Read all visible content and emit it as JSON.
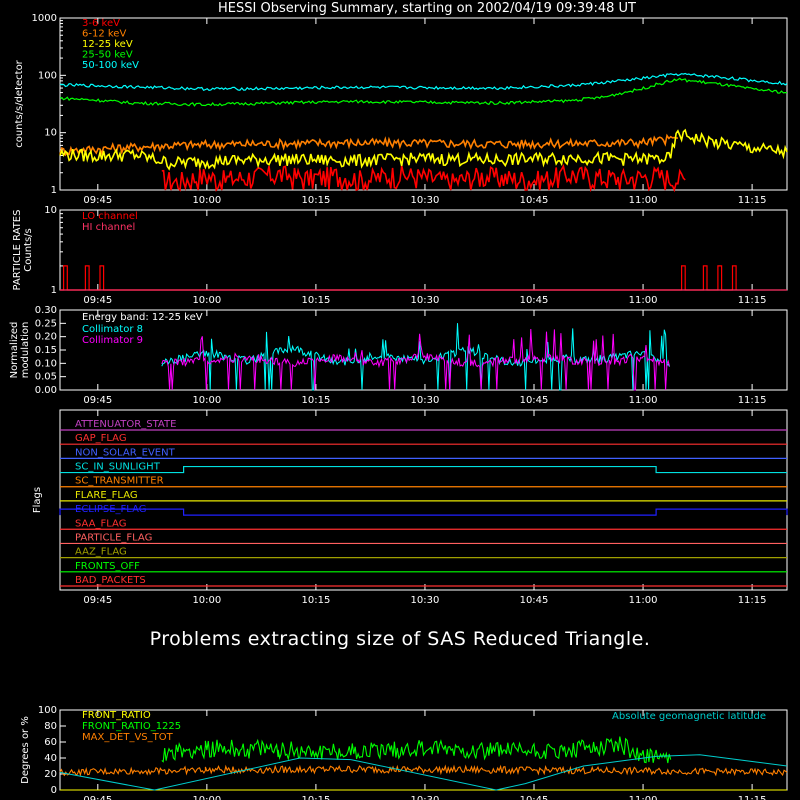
{
  "title": "HESSI Observing Summary, starting on 2002/04/19 09:39:48 UT",
  "message": "Problems extracting size of SAS Reduced Triangle.",
  "time_ticks": [
    "09:45",
    "10:00",
    "10:15",
    "10:30",
    "10:45",
    "11:00",
    "11:15"
  ],
  "chart_data": [
    {
      "id": "lightcurves",
      "type": "line",
      "ylabel": "counts/s/detector",
      "y_scale": "log",
      "ylim": [
        1,
        1000
      ],
      "y_ticks": [
        "1",
        "10",
        "100",
        "1000"
      ],
      "xlim_minutes": [
        0,
        100
      ],
      "series": [
        {
          "name": "3-6 keV",
          "color": "#ff0000",
          "x": [
            14,
            16,
            20,
            22,
            26,
            30,
            34,
            38,
            42,
            46,
            50,
            54,
            58,
            62,
            66,
            70,
            74,
            78,
            82,
            86
          ],
          "y": [
            1.6,
            1.4,
            1.8,
            1.5,
            1.7,
            1.9,
            1.6,
            1.8,
            1.5,
            1.9,
            1.7,
            1.4,
            1.8,
            1.6,
            1.5,
            1.9,
            1.7,
            1.6,
            1.8,
            1.5
          ]
        },
        {
          "name": "6-12 keV",
          "color": "#ff8000",
          "x": [
            0,
            15,
            20,
            30,
            40,
            50,
            60,
            70,
            80,
            85
          ],
          "y": [
            4.8,
            6.0,
            6.2,
            6.5,
            6.7,
            6.6,
            6.4,
            6.5,
            6.8,
            8.0
          ]
        },
        {
          "name": "12-25 keV",
          "color": "#ffff00",
          "x": [
            0,
            5,
            10,
            15,
            20,
            30,
            40,
            50,
            60,
            70,
            80,
            84,
            85,
            87,
            90,
            95,
            100
          ],
          "y": [
            4.3,
            4.0,
            4.2,
            3.0,
            3.2,
            3.5,
            3.3,
            3.6,
            3.4,
            3.7,
            3.5,
            3.6,
            9.5,
            8.5,
            6.8,
            5.5,
            4.6
          ]
        },
        {
          "name": "25-50 keV",
          "color": "#00ff00",
          "x": [
            0,
            5,
            10,
            20,
            30,
            40,
            50,
            60,
            70,
            75,
            80,
            85,
            90,
            95,
            100
          ],
          "y": [
            40,
            37,
            33,
            31,
            33,
            35,
            34,
            33,
            36,
            42,
            58,
            85,
            72,
            58,
            50
          ]
        },
        {
          "name": "50-100 keV",
          "color": "#00ffff",
          "x": [
            0,
            5,
            10,
            20,
            30,
            40,
            50,
            60,
            70,
            75,
            80,
            85,
            90,
            95,
            100
          ],
          "y": [
            68,
            66,
            63,
            58,
            59,
            62,
            61,
            60,
            66,
            75,
            88,
            105,
            95,
            82,
            72
          ]
        }
      ]
    },
    {
      "id": "particles",
      "type": "line",
      "ylabel": "PARTICLE RATES Counts/s",
      "y_scale": "log",
      "ylim": [
        1,
        10
      ],
      "y_ticks": [
        "1",
        "10"
      ],
      "series": [
        {
          "name": "LO channel",
          "color": "#ff0000",
          "x": [
            0,
            0.5,
            1,
            3,
            3.5,
            4,
            5,
            5.5,
            6,
            85,
            85.5,
            86,
            88,
            88.5,
            89,
            90,
            90.5,
            91,
            92,
            92.5,
            93
          ],
          "y": [
            1,
            2,
            1,
            1,
            2,
            1,
            1,
            2,
            1,
            1,
            2,
            1,
            1,
            2,
            1,
            1,
            2,
            1,
            1,
            2,
            1
          ]
        },
        {
          "name": "HI channel",
          "color": "#ff3366",
          "x": [
            0,
            100
          ],
          "y": [
            1,
            1
          ]
        }
      ]
    },
    {
      "id": "modulation",
      "type": "line",
      "ylabel": "Normalized modulation",
      "ylim": [
        0,
        0.3
      ],
      "y_ticks": [
        "0.00",
        "0.05",
        "0.10",
        "0.15",
        "0.20",
        "0.25",
        "0.30"
      ],
      "energy_band_label": "Energy band: 12-25 keV",
      "series": [
        {
          "name": "Collimator 8",
          "color": "#00ffff",
          "x": [
            14,
            20,
            26,
            32,
            38,
            44,
            50,
            56,
            62,
            68,
            74,
            80,
            84
          ],
          "y": [
            0.1,
            0.14,
            0.11,
            0.16,
            0.1,
            0.13,
            0.11,
            0.15,
            0.1,
            0.12,
            0.11,
            0.14,
            0.1
          ]
        },
        {
          "name": "Collimator 9",
          "color": "#ff00ff",
          "x": [
            14,
            20,
            26,
            32,
            38,
            44,
            50,
            56,
            62,
            68,
            74,
            80,
            84
          ],
          "y": [
            0.1,
            0.11,
            0.12,
            0.1,
            0.12,
            0.1,
            0.13,
            0.1,
            0.11,
            0.12,
            0.1,
            0.12,
            0.1
          ]
        }
      ]
    },
    {
      "id": "flags",
      "type": "line",
      "ylabel": "Flags",
      "flags": [
        {
          "name": "ATTENUATOR_STATE",
          "color": "#c040c0"
        },
        {
          "name": "GAP_FLAG",
          "color": "#ff3030"
        },
        {
          "name": "NON_SOLAR_EVENT",
          "color": "#4060ff"
        },
        {
          "name": "SC_IN_SUNLIGHT",
          "color": "#00e0e0",
          "high": [
            [
              17,
              82
            ]
          ]
        },
        {
          "name": "SC_TRANSMITTER",
          "color": "#ff8000"
        },
        {
          "name": "FLARE_FLAG",
          "color": "#e8e800"
        },
        {
          "name": "ECLIPSE_FLAG",
          "color": "#2020ff",
          "high": [
            [
              0,
              17
            ],
            [
              82,
              100
            ]
          ]
        },
        {
          "name": "SAA_FLAG",
          "color": "#ff3030"
        },
        {
          "name": "PARTICLE_FLAG",
          "color": "#ff6060"
        },
        {
          "name": "AAZ_FLAG",
          "color": "#a0a000"
        },
        {
          "name": "FRONTS_OFF",
          "color": "#00ff00"
        },
        {
          "name": "BAD_PACKETS",
          "color": "#ff3030"
        }
      ]
    },
    {
      "id": "ratios",
      "type": "line",
      "ylabel": "Degrees or %",
      "ylim": [
        0,
        100
      ],
      "y_ticks": [
        "0",
        "20",
        "40",
        "60",
        "80",
        "100"
      ],
      "latitude_label": "Absolute geomagnetic latitude",
      "series": [
        {
          "name": "FRONT_RATIO",
          "color": "#ffff00",
          "x": [
            0,
            100
          ],
          "y": [
            0,
            0
          ]
        },
        {
          "name": "FRONT_RATIO_1225",
          "color": "#00ff00",
          "x": [
            14,
            20,
            30,
            40,
            50,
            60,
            70,
            76,
            80,
            84
          ],
          "y": [
            45,
            52,
            50,
            48,
            52,
            50,
            47,
            60,
            45,
            38
          ]
        },
        {
          "name": "MAX_DET_VS_TOT",
          "color": "#ff8000",
          "x": [
            0,
            20,
            40,
            60,
            80,
            100
          ],
          "y": [
            22,
            25,
            26,
            25,
            24,
            22
          ]
        },
        {
          "name": "Absolute geomagnetic latitude",
          "color": "#00cccc",
          "x": [
            0,
            13,
            33,
            40,
            60,
            64,
            72,
            82,
            88,
            100
          ],
          "y": [
            22,
            0,
            40,
            38,
            0,
            8,
            30,
            42,
            44,
            30
          ]
        }
      ]
    }
  ]
}
